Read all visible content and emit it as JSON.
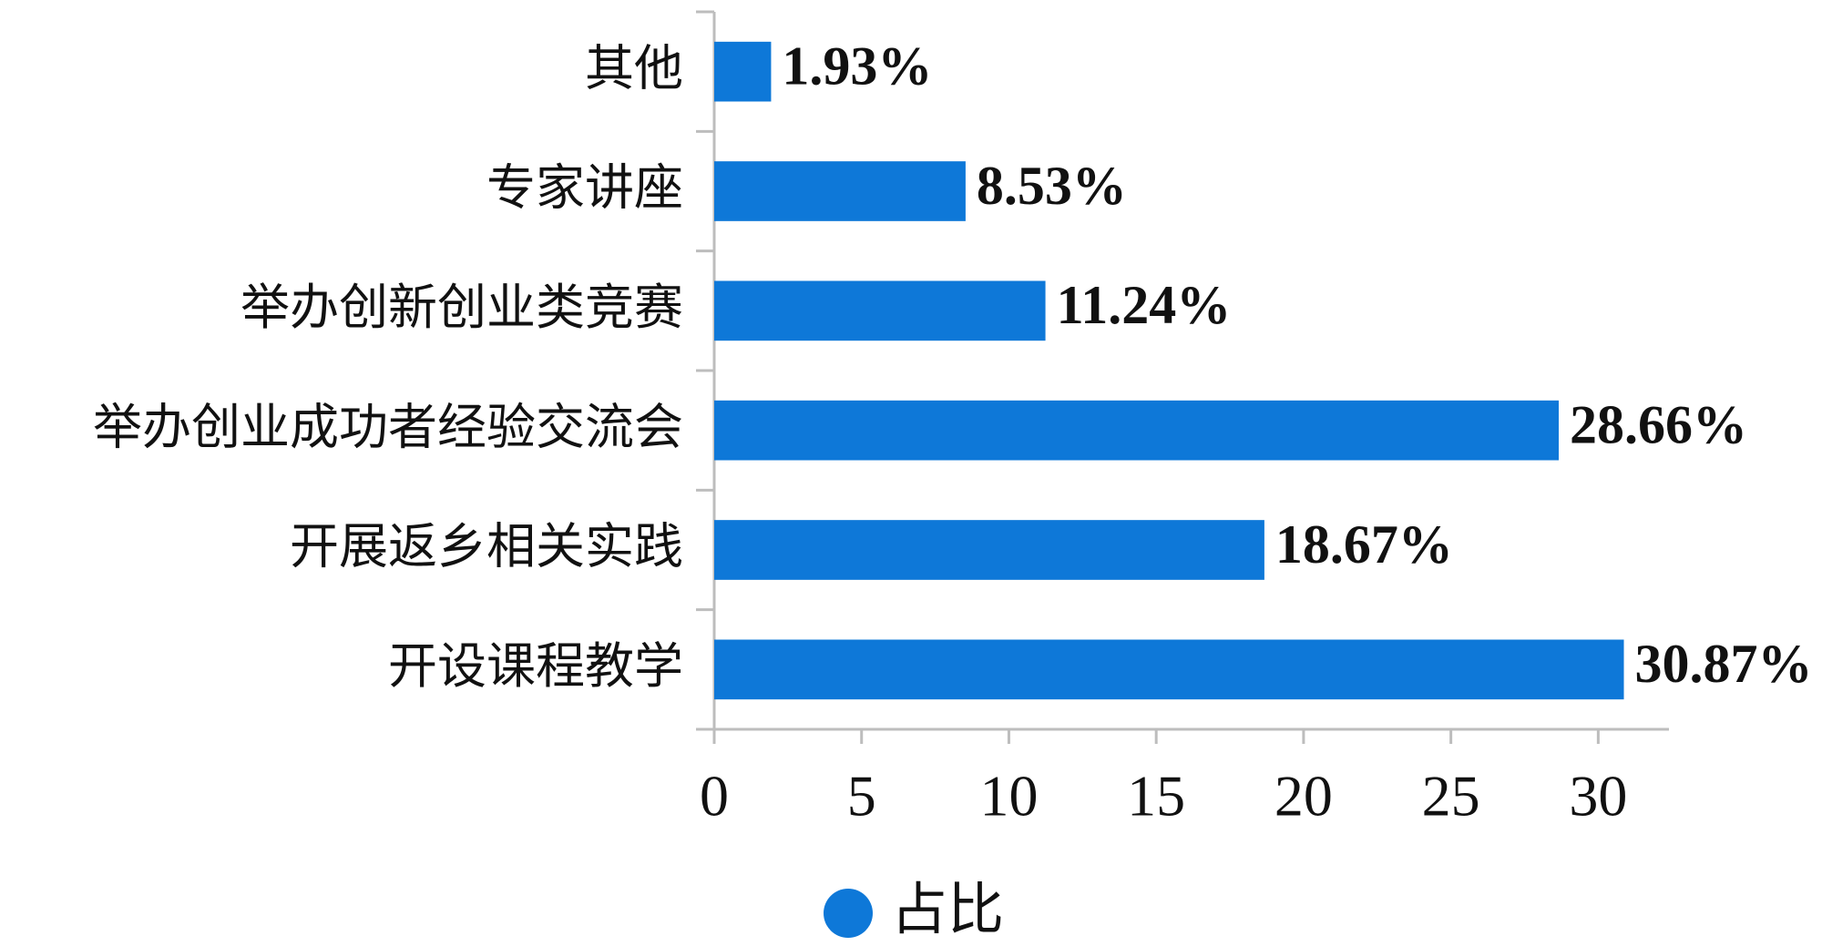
{
  "chart_data": {
    "type": "bar",
    "orientation": "horizontal",
    "categories": [
      "其他",
      "专家讲座",
      "举办创新创业类竞赛",
      "举办创业成功者经验交流会",
      "开展返乡相关实践",
      "开设课程教学"
    ],
    "series": [
      {
        "name": "占比",
        "color": "#0e78d8",
        "values": [
          1.93,
          8.53,
          11.24,
          28.66,
          18.67,
          30.87
        ],
        "value_labels": [
          "1.93%",
          "8.53%",
          "11.24%",
          "28.66%",
          "18.67%",
          "30.87%"
        ]
      }
    ],
    "xlim": [
      0,
      32.4
    ],
    "xticks": [
      0,
      5,
      10,
      15,
      20,
      25,
      30
    ],
    "legend": "bottom"
  }
}
